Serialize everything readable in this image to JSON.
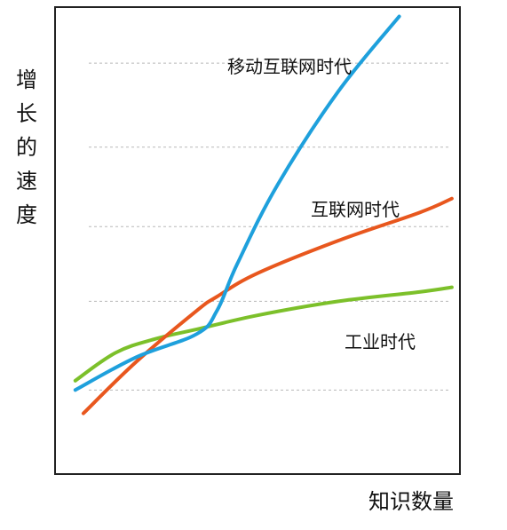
{
  "chart_data": {
    "type": "line",
    "title": "",
    "xlabel": "知识数量",
    "ylabel": "增长的速度",
    "xlim": [
      0,
      100
    ],
    "ylim": [
      0,
      100
    ],
    "grid": "horizontal-dashed",
    "gridlines_y": [
      18,
      37,
      53,
      70,
      88
    ],
    "series": [
      {
        "name": "移动互联网时代",
        "color": "#1ea0dc",
        "x": [
          5,
          20,
          35,
          40,
          45,
          55,
          70,
          85
        ],
        "y": [
          18,
          25,
          30,
          35,
          45,
          62,
          82,
          98
        ]
      },
      {
        "name": "互联网时代",
        "color": "#e8571e",
        "x": [
          7,
          20,
          35,
          40,
          50,
          70,
          90,
          98
        ],
        "y": [
          13,
          24,
          35,
          38,
          43,
          50,
          56,
          59
        ]
      },
      {
        "name": "工业时代",
        "color": "#7cc02a",
        "x": [
          5,
          15,
          25,
          35,
          50,
          70,
          90,
          98
        ],
        "y": [
          20,
          26,
          29,
          31,
          34,
          37,
          39,
          40
        ]
      }
    ]
  }
}
